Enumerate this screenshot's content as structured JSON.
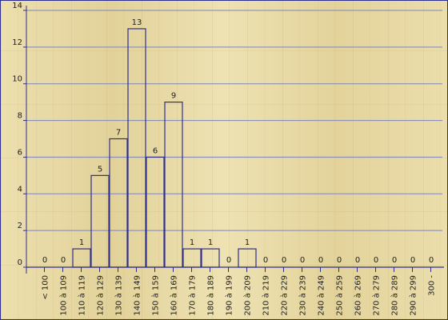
{
  "chart_data": {
    "type": "bar",
    "categories": [
      "< 100",
      "100 à 109",
      "110 à 119",
      "120 à 129",
      "130 à 139",
      "140 à 149",
      "150 à 159",
      "160 à 169",
      "170 à 179",
      "180 à 189",
      "190 à 199",
      "200 à 209",
      "210 à 219",
      "220 à 229",
      "230 à 239",
      "240 à 249",
      "250 à 259",
      "260 à 269",
      "270 à 279",
      "280 à 289",
      "290 à 299",
      "300 -"
    ],
    "values": [
      0,
      0,
      1,
      5,
      7,
      13,
      6,
      9,
      1,
      1,
      0,
      1,
      0,
      0,
      0,
      0,
      0,
      0,
      0,
      0,
      0,
      0
    ],
    "value_labels": [
      "0",
      "0",
      "1",
      "5",
      "7",
      "13",
      "6",
      "9",
      "1",
      "1",
      "0",
      "1",
      "0",
      "0",
      "0",
      "0",
      "0",
      "0",
      "0",
      "0",
      "0",
      "0"
    ],
    "yticks": [
      "0",
      "2",
      "4",
      "6",
      "8",
      "10",
      "12",
      "14"
    ],
    "ylim": [
      0,
      14
    ],
    "title": "",
    "xlabel": "",
    "ylabel": "",
    "grid": true,
    "colors": {
      "axis": "#2e2e8c",
      "grid": "#7f86b8",
      "bar_edge": "#2e2e8c",
      "text": "#1e1e1e"
    }
  }
}
